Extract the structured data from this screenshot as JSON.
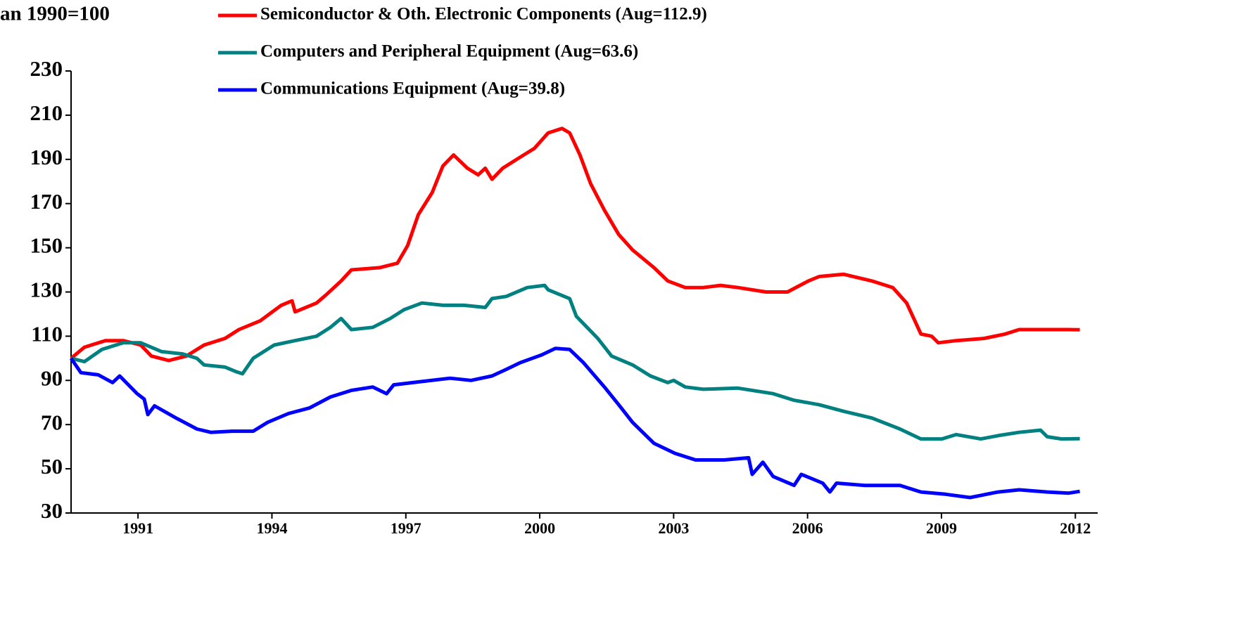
{
  "chart_data": {
    "type": "line",
    "title": "an 1990=100",
    "xlim": [
      1990,
      2013
    ],
    "ylim": [
      30,
      230
    ],
    "yticks": [
      30,
      50,
      70,
      90,
      110,
      130,
      150,
      170,
      190,
      210,
      230
    ],
    "xticks": [
      {
        "value": 1991.5,
        "label": "1991"
      },
      {
        "value": 1994.5,
        "label": "1994"
      },
      {
        "value": 1997.5,
        "label": "1997"
      },
      {
        "value": 2000.5,
        "label": "2000"
      },
      {
        "value": 2003.5,
        "label": "2003"
      },
      {
        "value": 2006.5,
        "label": "2006"
      },
      {
        "value": 2009.5,
        "label": "2009"
      },
      {
        "value": 2012.5,
        "label": "2012"
      }
    ],
    "series": [
      {
        "name": "Semiconductor & Oth. Electronic Components (Aug=112.9)",
        "color": "#ff0000",
        "x": [
          1990.0,
          1990.3,
          1990.77,
          1991.17,
          1991.56,
          1991.8,
          1992.19,
          1992.58,
          1992.98,
          1993.45,
          1993.76,
          1994.24,
          1994.71,
          1994.95,
          1995.02,
          1995.5,
          1995.73,
          1996.05,
          1996.28,
          1996.91,
          1997.31,
          1997.54,
          1997.78,
          1998.09,
          1998.33,
          1998.57,
          1998.88,
          1999.12,
          1999.28,
          1999.43,
          1999.67,
          2000.06,
          2000.38,
          2000.69,
          2001.0,
          2001.17,
          2001.4,
          2001.64,
          2001.95,
          2002.27,
          2002.58,
          2003.06,
          2003.37,
          2003.76,
          2004.16,
          2004.55,
          2004.94,
          2005.57,
          2006.05,
          2006.52,
          2006.76,
          2007.31,
          2007.94,
          2008.41,
          2008.72,
          2009.04,
          2009.28,
          2009.43,
          2009.83,
          2010.46,
          2010.93,
          2011.24,
          2011.63,
          2012.03,
          2012.35,
          2012.6
        ],
        "values": [
          100,
          105,
          108,
          108,
          106,
          101,
          99,
          101,
          106,
          109,
          113,
          117,
          124,
          126,
          121,
          125,
          129,
          135,
          140,
          141,
          143,
          151,
          165,
          175,
          187,
          192,
          186,
          183,
          186,
          181,
          186,
          191,
          195,
          202,
          204,
          202,
          192,
          179,
          167,
          156,
          149,
          141,
          135,
          132,
          132,
          133,
          132,
          130,
          130,
          135,
          137,
          138,
          135,
          132,
          125,
          111,
          110,
          107,
          108,
          109,
          111,
          113,
          113,
          113,
          113,
          112.9
        ]
      },
      {
        "name": "Computers and Peripheral Equipment (Aug=63.6)",
        "color": "#008080",
        "x": [
          1990.0,
          1990.3,
          1990.69,
          1991.17,
          1991.56,
          1992.03,
          1992.5,
          1992.82,
          1992.98,
          1993.45,
          1993.69,
          1993.84,
          1994.08,
          1994.55,
          1995.02,
          1995.5,
          1995.81,
          1996.05,
          1996.28,
          1996.76,
          1997.15,
          1997.46,
          1997.86,
          1998.33,
          1998.8,
          1999.28,
          1999.43,
          1999.75,
          2000.22,
          2000.61,
          2000.69,
          2001.17,
          2001.32,
          2001.8,
          2002.11,
          2002.58,
          2002.98,
          2003.37,
          2003.5,
          2003.76,
          2004.16,
          2004.94,
          2005.73,
          2006.2,
          2006.76,
          2007.31,
          2007.94,
          2008.57,
          2009.04,
          2009.51,
          2009.83,
          2010.38,
          2010.77,
          2011.24,
          2011.72,
          2011.87,
          2012.19,
          2012.6
        ],
        "values": [
          100,
          98.5,
          104,
          107,
          107,
          103,
          102,
          100,
          97,
          96,
          94,
          93,
          100,
          106,
          108,
          110,
          114,
          118,
          113,
          114,
          118,
          122,
          125,
          124,
          124,
          123,
          127,
          128,
          132,
          133,
          131,
          127,
          119,
          109,
          101,
          97,
          92,
          89,
          90,
          87,
          86,
          86.5,
          84,
          81,
          79,
          76,
          73,
          68,
          63.5,
          63.5,
          65.5,
          63.5,
          65,
          66.5,
          67.5,
          64.5,
          63.5,
          63.6
        ]
      },
      {
        "name": "Communications Equipment (Aug=39.8)",
        "color": "#0000ff",
        "x": [
          1990.0,
          1990.22,
          1990.61,
          1990.93,
          1991.09,
          1991.48,
          1991.64,
          1991.72,
          1991.87,
          1992.35,
          1992.82,
          1993.13,
          1993.6,
          1994.08,
          1994.4,
          1994.87,
          1995.34,
          1995.81,
          1996.28,
          1996.76,
          1997.07,
          1997.23,
          1997.86,
          1998.49,
          1998.96,
          1999.43,
          1999.75,
          2000.06,
          2000.54,
          2000.85,
          2001.17,
          2001.48,
          2001.95,
          2002.27,
          2002.58,
          2003.06,
          2003.53,
          2003.99,
          2004.63,
          2005.18,
          2005.26,
          2005.5,
          2005.73,
          2006.2,
          2006.36,
          2006.84,
          2007.0,
          2007.15,
          2007.78,
          2008.57,
          2009.04,
          2009.59,
          2010.14,
          2010.77,
          2011.24,
          2011.87,
          2012.35,
          2012.6
        ],
        "values": [
          100,
          93.5,
          92.5,
          89,
          92,
          84,
          81.5,
          74.5,
          78.5,
          73,
          68,
          66.5,
          67,
          67,
          71,
          75,
          77.5,
          82.5,
          85.5,
          87,
          84,
          88,
          89.5,
          91,
          90,
          92,
          95,
          98,
          101.5,
          104.5,
          104,
          98,
          87,
          79,
          71,
          61.5,
          57,
          54,
          54,
          55,
          47.5,
          53,
          46.5,
          42.5,
          47.5,
          43.5,
          39.5,
          43.5,
          42.5,
          42.5,
          39.5,
          38.5,
          37,
          39.5,
          40.5,
          39.5,
          39,
          39.8
        ]
      }
    ]
  }
}
